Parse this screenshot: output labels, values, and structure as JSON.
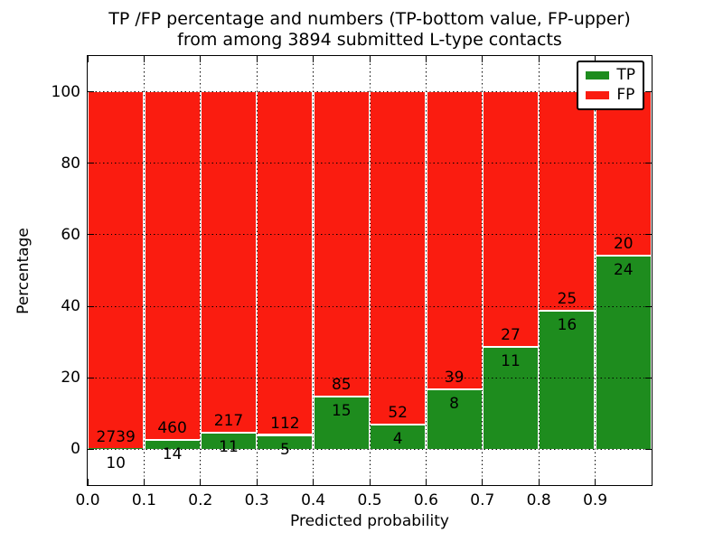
{
  "title": {
    "line1": "TP /FP percentage and numbers (TP-bottom value, FP-upper)",
    "line2": "from among 3894 submitted L-type contacts"
  },
  "axes": {
    "xlabel": "Predicted probability",
    "ylabel": "Percentage",
    "xticks": [
      "0.0",
      "0.1",
      "0.2",
      "0.3",
      "0.4",
      "0.5",
      "0.6",
      "0.7",
      "0.8",
      "0.9"
    ],
    "yticks": [
      "0",
      "20",
      "40",
      "60",
      "80",
      "100"
    ],
    "xlim": [
      0.0,
      1.0
    ],
    "ylim": [
      -10,
      110
    ],
    "grid_style": "dotted"
  },
  "legend": {
    "position": "upper right",
    "entries": [
      {
        "label": "TP",
        "color": "#1e8c1e"
      },
      {
        "label": "FP",
        "color": "#fa1c10"
      }
    ]
  },
  "colors": {
    "tp_green": "#1e8c1e",
    "fp_red": "#fa1c10",
    "frame": "#000000",
    "background": "#ffffff",
    "bar_edge": "#ffffff"
  },
  "chart_data": {
    "type": "bar",
    "stacked": true,
    "normalized_to_percent": true,
    "title": "TP /FP percentage and numbers (TP-bottom value, FP-upper) from among 3894 submitted L-type contacts",
    "xlabel": "Predicted probability",
    "ylabel": "Percentage",
    "xlim": [
      0.0,
      1.0
    ],
    "ylim": [
      -10,
      110
    ],
    "x_bin_edges": [
      0.0,
      0.1,
      0.2,
      0.3,
      0.4,
      0.5,
      0.6,
      0.7,
      0.8,
      0.9,
      1.0
    ],
    "series": [
      {
        "name": "TP",
        "color": "#1e8c1e",
        "counts": [
          10,
          14,
          11,
          5,
          15,
          4,
          8,
          11,
          16,
          24
        ]
      },
      {
        "name": "FP",
        "color": "#fa1c10",
        "counts": [
          2739,
          460,
          217,
          112,
          85,
          52,
          39,
          27,
          25,
          20
        ]
      }
    ],
    "tp_percentage_per_bin": [
      0.36,
      2.95,
      4.82,
      4.27,
      15.0,
      7.14,
      17.02,
      28.95,
      39.02,
      54.55
    ],
    "annotation_rule": "FP count printed above the TP/FP boundary, TP count printed below it",
    "legend_position": "upper right",
    "grid": "dotted, drawn on top of bars"
  }
}
